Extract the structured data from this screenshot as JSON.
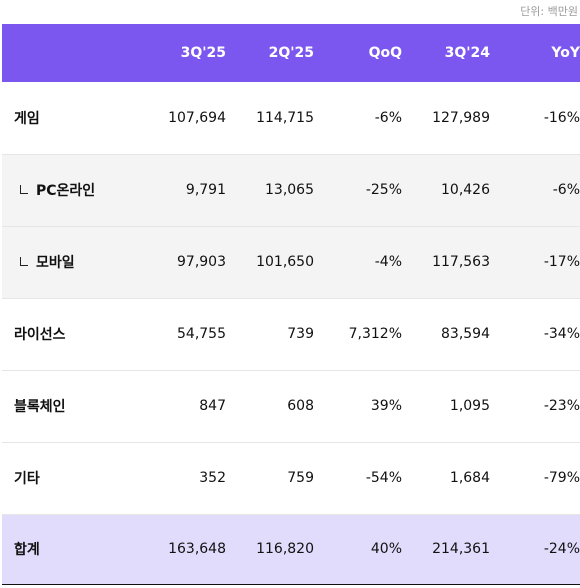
{
  "unit_note": "단위: 백만원",
  "columns": [
    "",
    "3Q'25",
    "2Q'25",
    "QoQ",
    "3Q'24",
    "YoY"
  ],
  "rows": [
    {
      "label": "게임",
      "sub": false,
      "shade": false,
      "values": [
        "107,694",
        "114,715",
        "-6%",
        "127,989",
        "-16%"
      ]
    },
    {
      "label": "PC온라인",
      "sub": true,
      "shade": true,
      "values": [
        "9,791",
        "13,065",
        "-25%",
        "10,426",
        "-6%"
      ]
    },
    {
      "label": "모바일",
      "sub": true,
      "shade": true,
      "values": [
        "97,903",
        "101,650",
        "-4%",
        "117,563",
        "-17%"
      ]
    },
    {
      "label": "라이선스",
      "sub": false,
      "shade": false,
      "values": [
        "54,755",
        "739",
        "7,312%",
        "83,594",
        "-34%"
      ]
    },
    {
      "label": "블록체인",
      "sub": false,
      "shade": false,
      "values": [
        "847",
        "608",
        "39%",
        "1,095",
        "-23%"
      ]
    },
    {
      "label": "기타",
      "sub": false,
      "shade": false,
      "values": [
        "352",
        "759",
        "-54%",
        "1,684",
        "-79%"
      ]
    }
  ],
  "total": {
    "label": "합계",
    "values": [
      "163,648",
      "116,820",
      "40%",
      "214,361",
      "-24%"
    ]
  },
  "colors": {
    "header_bg": "#7b57f0",
    "total_bg": "#e2dcfc",
    "sub_row_bg": "#f4f4f4"
  }
}
